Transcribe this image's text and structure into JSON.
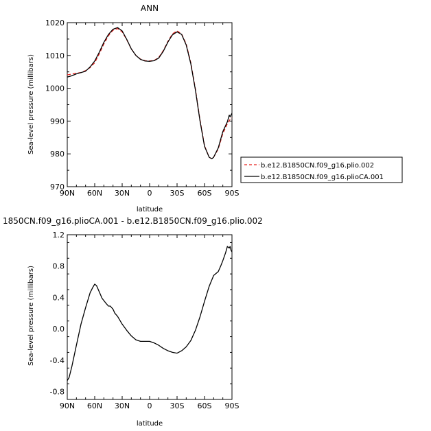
{
  "colors": {
    "control": "#e8221e",
    "experiment": "#000000",
    "diff": "#000000"
  },
  "chart_data": [
    {
      "type": "line",
      "title": "ANN",
      "xlabel": "latitude",
      "ylabel": "Sea-level pressure (millibars)",
      "xlim": [
        90,
        -90
      ],
      "ylim": [
        970,
        1020
      ],
      "xticks": [
        90,
        60,
        30,
        0,
        -30,
        -60,
        -90
      ],
      "xtick_labels": [
        "90N",
        "60N",
        "30N",
        "0",
        "30S",
        "60S",
        "90S"
      ],
      "yticks": [
        970,
        980,
        990,
        1000,
        1010,
        1020
      ],
      "ytick_labels": [
        "970",
        "980",
        "990",
        "1000",
        "1010",
        "1020"
      ],
      "legend_position": "right",
      "series": [
        {
          "name": "b.e12.B1850CN.f09_g16.plio.002",
          "style": "dashed",
          "color": "#e8221e",
          "x": [
            90,
            85,
            80,
            75,
            70,
            65,
            60,
            55,
            50,
            45,
            40,
            35,
            30,
            25,
            20,
            15,
            10,
            5,
            0,
            -5,
            -10,
            -15,
            -20,
            -25,
            -30,
            -35,
            -40,
            -45,
            -50,
            -55,
            -60,
            -65,
            -68,
            -70,
            -75,
            -80,
            -85,
            -88,
            -90
          ],
          "y": [
            1004.1,
            1004.3,
            1004.6,
            1004.8,
            1005.4,
            1006.3,
            1007.8,
            1010.5,
            1013.5,
            1016.0,
            1017.7,
            1018.2,
            1017.2,
            1014.8,
            1012.0,
            1010.0,
            1008.9,
            1008.4,
            1008.3,
            1008.5,
            1009.4,
            1011.5,
            1014.3,
            1016.6,
            1017.5,
            1016.5,
            1013.5,
            1007.8,
            999.8,
            990.5,
            982.5,
            979.0,
            978.5,
            979.0,
            981.5,
            986.2,
            989.2,
            990.5,
            991.0
          ]
        },
        {
          "name": "b.e12.B1850CN.f09_g16.plioCA.001",
          "style": "solid",
          "color": "#000000",
          "x": [
            90,
            85,
            80,
            75,
            70,
            65,
            60,
            55,
            50,
            45,
            40,
            35,
            30,
            25,
            20,
            15,
            10,
            5,
            0,
            -5,
            -10,
            -15,
            -20,
            -25,
            -30,
            -35,
            -40,
            -45,
            -50,
            -55,
            -60,
            -65,
            -68,
            -70,
            -75,
            -80,
            -85,
            -87,
            -88,
            -90
          ],
          "y": [
            1003.4,
            1003.8,
            1004.4,
            1004.8,
            1005.2,
            1006.5,
            1008.3,
            1011.0,
            1014.0,
            1016.4,
            1018.0,
            1018.5,
            1017.5,
            1014.9,
            1012.0,
            1010.0,
            1008.8,
            1008.3,
            1008.2,
            1008.4,
            1009.2,
            1011.3,
            1014.1,
            1016.3,
            1017.2,
            1016.4,
            1013.2,
            1007.5,
            999.5,
            990.2,
            982.3,
            979.0,
            978.5,
            979.0,
            981.8,
            986.8,
            989.8,
            991.8,
            991.3,
            992.4
          ]
        }
      ]
    },
    {
      "type": "line",
      "title": "1850CN.f09_g16.plioCA.001 - b.e12.B1850CN.f09_g16.plio.002",
      "xlabel": "latitude",
      "ylabel": "Sea-level pressure (millibars)",
      "xlim": [
        90,
        -90
      ],
      "ylim": [
        -0.9,
        1.2
      ],
      "xticks": [
        90,
        60,
        30,
        0,
        -30,
        -60,
        -90
      ],
      "xtick_labels": [
        "90N",
        "60N",
        "30N",
        "0",
        "30S",
        "60S",
        "90S"
      ],
      "yticks": [
        -0.8,
        -0.4,
        0.0,
        0.4,
        0.8,
        1.2
      ],
      "ytick_labels": [
        "-0.8",
        "-0.4",
        "0.0",
        "0.4",
        "0.8",
        "1.2"
      ],
      "series": [
        {
          "style": "solid",
          "color": "#000000",
          "x": [
            90,
            88,
            85,
            80,
            75,
            70,
            65,
            62,
            60,
            58,
            55,
            52,
            48,
            45,
            43,
            40,
            38,
            35,
            30,
            25,
            20,
            15,
            10,
            5,
            0,
            -5,
            -10,
            -15,
            -20,
            -25,
            -30,
            -35,
            -40,
            -45,
            -50,
            -55,
            -60,
            -65,
            -70,
            -73,
            -75,
            -78,
            -80,
            -83,
            -85,
            -87,
            -88,
            -89,
            -90
          ],
          "y": [
            -0.66,
            -0.62,
            -0.48,
            -0.21,
            0.06,
            0.27,
            0.46,
            0.53,
            0.57,
            0.55,
            0.47,
            0.39,
            0.33,
            0.29,
            0.29,
            0.25,
            0.2,
            0.16,
            0.06,
            -0.02,
            -0.09,
            -0.14,
            -0.16,
            -0.16,
            -0.16,
            -0.18,
            -0.21,
            -0.25,
            -0.28,
            -0.3,
            -0.31,
            -0.28,
            -0.23,
            -0.15,
            -0.02,
            0.15,
            0.35,
            0.54,
            0.68,
            0.71,
            0.73,
            0.81,
            0.87,
            0.97,
            1.05,
            1.03,
            1.05,
            1.0,
            0.98
          ]
        }
      ]
    }
  ]
}
